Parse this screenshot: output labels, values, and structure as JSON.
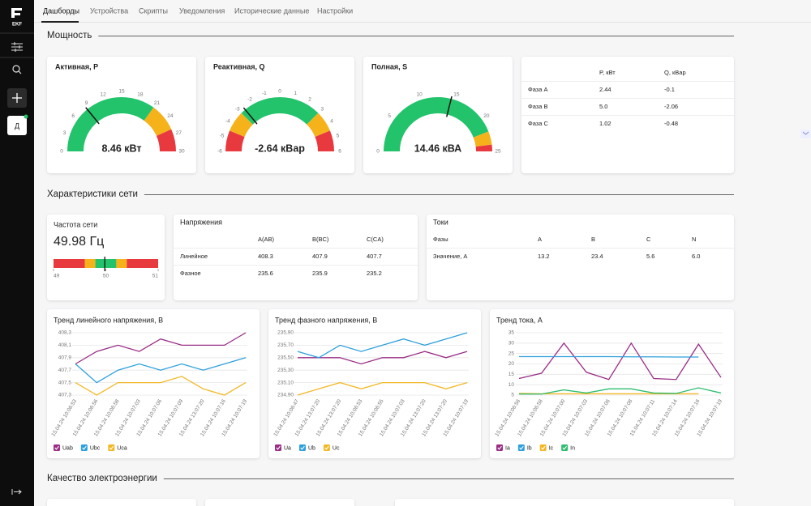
{
  "sidebar": {
    "logo": "EKF",
    "avatar": "Д"
  },
  "tabs": [
    "Дашборды",
    "Устройства",
    "Скрипты",
    "Уведомления",
    "Исторические данные",
    "Настройки"
  ],
  "sections": [
    "Мощность",
    "Характеристики сети",
    "Качество электроэнергии"
  ],
  "gauges": [
    {
      "title": "Активная, P",
      "value": 8.46,
      "value_label": "8.46 кВт",
      "lim": [
        0,
        30
      ],
      "ticks": [
        0,
        3,
        6,
        9,
        12,
        15,
        18,
        21,
        24,
        27,
        30
      ],
      "bands": [
        {
          "to": 21,
          "color": "#22c36b"
        },
        {
          "to": 26,
          "color": "#f5b21a"
        },
        {
          "to": 30,
          "color": "#e8393f"
        }
      ]
    },
    {
      "title": "Реактивная, Q",
      "value": -2.64,
      "value_label": "-2.64 кВар",
      "lim": [
        -6,
        6
      ],
      "ticks": [
        -6,
        -5,
        -4,
        -3,
        -2,
        -1,
        0,
        1,
        2,
        3,
        4,
        5,
        6
      ],
      "bands": [
        {
          "to": -4.5,
          "color": "#e8393f"
        },
        {
          "to": -3,
          "color": "#f5b21a"
        },
        {
          "to": 3,
          "color": "#22c36b"
        },
        {
          "to": 4.5,
          "color": "#f5b21a"
        },
        {
          "to": 6,
          "color": "#e8393f"
        }
      ]
    },
    {
      "title": "Полная, S",
      "value": 14.46,
      "value_label": "14.46 кВА",
      "lim": [
        0,
        25
      ],
      "ticks": [
        0,
        5,
        10,
        15,
        20,
        25
      ],
      "bands": [
        {
          "to": 22,
          "color": "#22c36b"
        },
        {
          "to": 24,
          "color": "#f5b21a"
        },
        {
          "to": 25,
          "color": "#e8393f"
        }
      ]
    }
  ],
  "power_table": {
    "columns": [
      "P, кВт",
      "Q, кВар"
    ],
    "rows": [
      {
        "label": "Фаза A",
        "cells": [
          "2.44",
          "-0.1"
        ]
      },
      {
        "label": "Фаза B",
        "cells": [
          "5.0",
          "-2.06"
        ]
      },
      {
        "label": "Фаза C",
        "cells": [
          "1.02",
          "-0.48"
        ]
      }
    ]
  },
  "frequency": {
    "title": "Частота сети",
    "value": 49.98,
    "value_label": "49.98 Гц",
    "lim": [
      49,
      51
    ],
    "ticks": [
      49,
      50,
      51
    ],
    "bands": [
      {
        "to": 49.6,
        "color": "#e8393f"
      },
      {
        "to": 49.8,
        "color": "#f5b21a"
      },
      {
        "to": 50.2,
        "color": "#22c36b"
      },
      {
        "to": 50.4,
        "color": "#f5b21a"
      },
      {
        "to": 51,
        "color": "#e8393f"
      }
    ]
  },
  "voltage_table": {
    "title": "Напряжения",
    "columns": [
      "A(AB)",
      "B(BC)",
      "C(CA)"
    ],
    "rows": [
      {
        "label": "Линейное",
        "cells": [
          "408.3",
          "407.9",
          "407.7"
        ]
      },
      {
        "label": "Фазное",
        "cells": [
          "235.6",
          "235.9",
          "235.2"
        ]
      }
    ]
  },
  "current_table": {
    "title": "Токи",
    "columns": [
      "Фазы",
      "A",
      "B",
      "C",
      "N"
    ],
    "rows": [
      {
        "label": "Значение, А",
        "cells": [
          "13.2",
          "23.4",
          "5.6",
          "6.0"
        ]
      }
    ]
  },
  "trends": [
    {
      "type": "line",
      "title": "Тренд линейного напряжения, В",
      "x": [
        "15.04.24 10:06:53",
        "15.04.24 10:06:56",
        "15.04.24 10:06:58",
        "15.04.24 10:07:03",
        "15.04.24 10:07:06",
        "15.04.24 10:07:09",
        "15.04.24 13:07:20",
        "15.04.24 10:07:16",
        "15.04.24 10:07:19"
      ],
      "ylim": [
        407.3,
        408.3
      ],
      "yticks": [
        {
          "value": 407.3,
          "label": "407,3"
        },
        {
          "value": 407.5,
          "label": "407,5"
        },
        {
          "value": 407.7,
          "label": "407,7"
        },
        {
          "value": 407.9,
          "label": "407,9"
        },
        {
          "value": 408.1,
          "label": "408,1"
        },
        {
          "value": 408.3,
          "label": "408,3"
        }
      ],
      "series": [
        {
          "name": "Uab",
          "color": "#9b2d86",
          "values": [
            407.8,
            408.0,
            408.1,
            408.0,
            408.2,
            408.1,
            408.1,
            408.1,
            408.3
          ]
        },
        {
          "name": "Ubc",
          "color": "#2ea0dc",
          "values": [
            407.8,
            407.5,
            407.7,
            407.8,
            407.7,
            407.8,
            407.7,
            407.8,
            407.9
          ]
        },
        {
          "name": "Uca",
          "color": "#f2b824",
          "values": [
            407.5,
            407.3,
            407.5,
            407.5,
            407.5,
            407.6,
            407.4,
            407.3,
            407.5
          ]
        }
      ]
    },
    {
      "type": "line",
      "title": "Тренд фазного напряжения, В",
      "x": [
        "15.04.24 10:06:47",
        "15.04.24 13:07:20",
        "15.04.24 13:07:20",
        "15.04.24 10:06:53",
        "15.04.24 10:06:55",
        "15.04.24 10:07:03",
        "15.04.24 13:07:20",
        "15.04.24 13:07:20",
        "15.04.24 10:07:19"
      ],
      "ylim": [
        234.9,
        235.9
      ],
      "yticks": [
        {
          "value": 234.9,
          "label": "234,90"
        },
        {
          "value": 235.1,
          "label": "235,10"
        },
        {
          "value": 235.3,
          "label": "235,30"
        },
        {
          "value": 235.5,
          "label": "235,50"
        },
        {
          "value": 235.7,
          "label": "235,70"
        },
        {
          "value": 235.9,
          "label": "235,90"
        }
      ],
      "series": [
        {
          "name": "Ua",
          "color": "#9b2d86",
          "values": [
            235.5,
            235.5,
            235.5,
            235.4,
            235.5,
            235.5,
            235.6,
            235.5,
            235.6
          ]
        },
        {
          "name": "Ub",
          "color": "#2ea0dc",
          "values": [
            235.6,
            235.5,
            235.7,
            235.6,
            235.7,
            235.8,
            235.7,
            235.8,
            235.9
          ]
        },
        {
          "name": "Uc",
          "color": "#f2b824",
          "values": [
            234.9,
            235.0,
            235.1,
            235.0,
            235.1,
            235.1,
            235.1,
            235.0,
            235.1
          ]
        }
      ]
    },
    {
      "type": "line",
      "title": "Тренд тока, А",
      "x": [
        "15.04.24 10:06:56",
        "15.04.24 10:06:58",
        "15.04.24 10:07:00",
        "15.04.24 10:07:03",
        "15.04.24 10:07:06",
        "15.04.24 10:07:08",
        "15.04.24 10:07:11",
        "15.04.24 10:07:14",
        "15.04.24 10:07:16",
        "15.04.24 10:07:19"
      ],
      "ylim": [
        5,
        35
      ],
      "yticks": [
        5,
        10,
        15,
        20,
        25,
        30,
        35
      ],
      "series": [
        {
          "name": "Ia",
          "color": "#9b2d86",
          "values": [
            13,
            15.5,
            30,
            16,
            12.5,
            30,
            13,
            12.5,
            29.5,
            13.5
          ]
        },
        {
          "name": "Ib",
          "color": "#2ea0dc",
          "values": [
            23.5,
            23.5,
            23.5,
            23.5,
            23.5,
            23.4,
            23.4,
            23.3,
            23.3,
            null
          ]
        },
        {
          "name": "Ic",
          "color": "#f2b824",
          "values": [
            5.8,
            5.6,
            5.6,
            5.6,
            5.6,
            5.6,
            5.6,
            5.6,
            5.6,
            null
          ]
        },
        {
          "name": "In",
          "color": "#2dbd6e",
          "values": [
            5.5,
            5.5,
            7.5,
            6,
            8,
            8,
            6,
            5.8,
            8.5,
            6
          ]
        }
      ]
    }
  ]
}
